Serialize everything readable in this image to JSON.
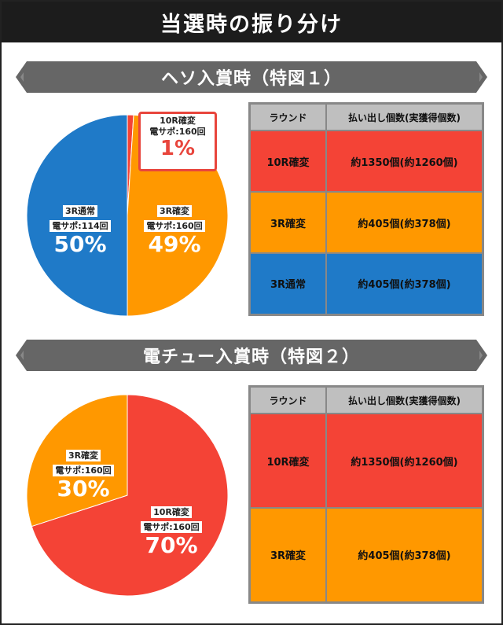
{
  "title": "当選時の振り分け",
  "colors": {
    "red": "#f44336",
    "orange": "#ff9800",
    "blue": "#1f7ac8",
    "banner": "#666666"
  },
  "sections": [
    {
      "banner": "ヘソ入賞時（特図１）",
      "chart_data": {
        "type": "pie",
        "slices": [
          {
            "name": "10R確変",
            "sub": "電サポ:160回",
            "pct_label": "1%",
            "value": 1,
            "color": "#f44336"
          },
          {
            "name": "3R確変",
            "sub": "電サポ:160回",
            "pct_label": "49%",
            "value": 49,
            "color": "#ff9800"
          },
          {
            "name": "3R通常",
            "sub": "電サポ:114回",
            "pct_label": "50%",
            "value": 50,
            "color": "#1f7ac8"
          }
        ]
      },
      "table": {
        "headers": [
          "ラウンド",
          "払い出し個数(実獲得個数)"
        ],
        "rows": [
          {
            "round": "10R確変",
            "payout": "約1350個(約1260個)",
            "color": "#f44336"
          },
          {
            "round": "3R確変",
            "payout": "約405個(約378個)",
            "color": "#ff9800"
          },
          {
            "round": "3R通常",
            "payout": "約405個(約378個)",
            "color": "#1f7ac8"
          }
        ]
      }
    },
    {
      "banner": "電チュー入賞時（特図２）",
      "chart_data": {
        "type": "pie",
        "slices": [
          {
            "name": "10R確変",
            "sub": "電サポ:160回",
            "pct_label": "70%",
            "value": 70,
            "color": "#f44336"
          },
          {
            "name": "3R確変",
            "sub": "電サポ:160回",
            "pct_label": "30%",
            "value": 30,
            "color": "#ff9800"
          }
        ]
      },
      "table": {
        "headers": [
          "ラウンド",
          "払い出し個数(実獲得個数)"
        ],
        "rows": [
          {
            "round": "10R確変",
            "payout": "約1350個(約1260個)",
            "color": "#f44336"
          },
          {
            "round": "3R確変",
            "payout": "約405個(約378個)",
            "color": "#ff9800"
          }
        ]
      }
    }
  ]
}
